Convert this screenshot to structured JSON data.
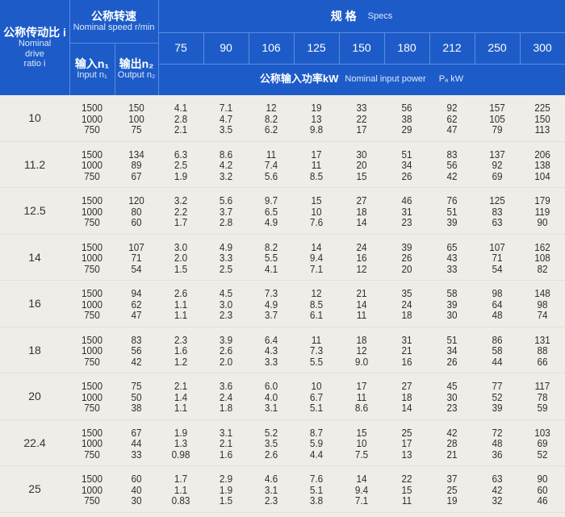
{
  "header": {
    "ratio_cn": "公称传动比 i",
    "ratio_en": [
      "Nominal",
      "drive",
      "ratio i"
    ],
    "speed_cn": "公称转速",
    "speed_en": "Nominal speed r/min",
    "input_cn": "输入n₁",
    "input_en": "Input n₁",
    "output_cn": "输出n₂",
    "output_en": "Output n₂",
    "specs_cn": "规 格",
    "specs_en": "Specs",
    "power_cn": "公称输入功率kW",
    "power_en": "Nominal input power",
    "power_unit": "Pₐ  kW",
    "sizes": [
      "75",
      "90",
      "106",
      "125",
      "150",
      "180",
      "212",
      "250",
      "300"
    ]
  },
  "groups": [
    {
      "ratio": "10",
      "input": [
        "1500",
        "1000",
        "750"
      ],
      "output": [
        "150",
        "100",
        "75"
      ],
      "power": [
        [
          "4.1",
          "7.1",
          "12",
          "19",
          "33",
          "56",
          "92",
          "157",
          "225"
        ],
        [
          "2.8",
          "4.7",
          "8.2",
          "13",
          "22",
          "38",
          "62",
          "105",
          "150"
        ],
        [
          "2.1",
          "3.5",
          "6.2",
          "9.8",
          "17",
          "29",
          "47",
          "79",
          "113"
        ]
      ]
    },
    {
      "ratio": "11.2",
      "input": [
        "1500",
        "1000",
        "750"
      ],
      "output": [
        "134",
        "89",
        "67"
      ],
      "power": [
        [
          "6.3",
          "8.6",
          "11",
          "17",
          "30",
          "51",
          "83",
          "137",
          "206"
        ],
        [
          "2.5",
          "4.2",
          "7.4",
          "11",
          "20",
          "34",
          "56",
          "92",
          "138"
        ],
        [
          "1.9",
          "3.2",
          "5.6",
          "8.5",
          "15",
          "26",
          "42",
          "69",
          "104"
        ]
      ]
    },
    {
      "ratio": "12.5",
      "input": [
        "1500",
        "1000",
        "750"
      ],
      "output": [
        "120",
        "80",
        "60"
      ],
      "power": [
        [
          "3.2",
          "5.6",
          "9.7",
          "15",
          "27",
          "46",
          "76",
          "125",
          "179"
        ],
        [
          "2.2",
          "3.7",
          "6.5",
          "10",
          "18",
          "31",
          "51",
          "83",
          "119"
        ],
        [
          "1.7",
          "2.8",
          "4.9",
          "7.6",
          "14",
          "23",
          "39",
          "63",
          "90"
        ]
      ]
    },
    {
      "ratio": "14",
      "input": [
        "1500",
        "1000",
        "750"
      ],
      "output": [
        "107",
        "71",
        "54"
      ],
      "power": [
        [
          "3.0",
          "4.9",
          "8.2",
          "14",
          "24",
          "39",
          "65",
          "107",
          "162"
        ],
        [
          "2.0",
          "3.3",
          "5.5",
          "9.4",
          "16",
          "26",
          "43",
          "71",
          "108"
        ],
        [
          "1.5",
          "2.5",
          "4.1",
          "7.1",
          "12",
          "20",
          "33",
          "54",
          "82"
        ]
      ]
    },
    {
      "ratio": "16",
      "input": [
        "1500",
        "1000",
        "750"
      ],
      "output": [
        "94",
        "62",
        "47"
      ],
      "power": [
        [
          "2.6",
          "4.5",
          "7.3",
          "12",
          "21",
          "35",
          "58",
          "98",
          "148"
        ],
        [
          "1.1",
          "3.0",
          "4.9",
          "8.5",
          "14",
          "24",
          "39",
          "64",
          "98"
        ],
        [
          "1.1",
          "2.3",
          "3.7",
          "6.1",
          "11",
          "18",
          "30",
          "48",
          "74"
        ]
      ]
    },
    {
      "ratio": "18",
      "input": [
        "1500",
        "1000",
        "750"
      ],
      "output": [
        "83",
        "56",
        "42"
      ],
      "power": [
        [
          "2.3",
          "3.9",
          "6.4",
          "11",
          "18",
          "31",
          "51",
          "86",
          "131"
        ],
        [
          "1.6",
          "2.6",
          "4.3",
          "7.3",
          "12",
          "21",
          "34",
          "58",
          "88"
        ],
        [
          "1.2",
          "2.0",
          "3.3",
          "5.5",
          "9.0",
          "16",
          "26",
          "44",
          "66"
        ]
      ]
    },
    {
      "ratio": "20",
      "input": [
        "1500",
        "1000",
        "750"
      ],
      "output": [
        "75",
        "50",
        "38"
      ],
      "power": [
        [
          "2.1",
          "3.6",
          "6.0",
          "10",
          "17",
          "27",
          "45",
          "77",
          "117"
        ],
        [
          "1.4",
          "2.4",
          "4.0",
          "6.7",
          "11",
          "18",
          "30",
          "52",
          "78"
        ],
        [
          "1.1",
          "1.8",
          "3.1",
          "5.1",
          "8.6",
          "14",
          "23",
          "39",
          "59"
        ]
      ]
    },
    {
      "ratio": "22.4",
      "input": [
        "1500",
        "1000",
        "750"
      ],
      "output": [
        "67",
        "44",
        "33"
      ],
      "power": [
        [
          "1.9",
          "3.1",
          "5.2",
          "8.7",
          "15",
          "25",
          "42",
          "72",
          "103"
        ],
        [
          "1.3",
          "2.1",
          "3.5",
          "5.9",
          "10",
          "17",
          "28",
          "48",
          "69"
        ],
        [
          "0.98",
          "1.6",
          "2.6",
          "4.4",
          "7.5",
          "13",
          "21",
          "36",
          "52"
        ]
      ]
    },
    {
      "ratio": "25",
      "input": [
        "1500",
        "1000",
        "750"
      ],
      "output": [
        "60",
        "40",
        "30"
      ],
      "power": [
        [
          "1.7",
          "2.9",
          "4.6",
          "7.6",
          "14",
          "22",
          "37",
          "63",
          "90"
        ],
        [
          "1.1",
          "1.9",
          "3.1",
          "5.1",
          "9.4",
          "15",
          "25",
          "42",
          "60"
        ],
        [
          "0.83",
          "1.5",
          "2.3",
          "3.8",
          "7.1",
          "11",
          "19",
          "32",
          "46"
        ]
      ]
    }
  ]
}
